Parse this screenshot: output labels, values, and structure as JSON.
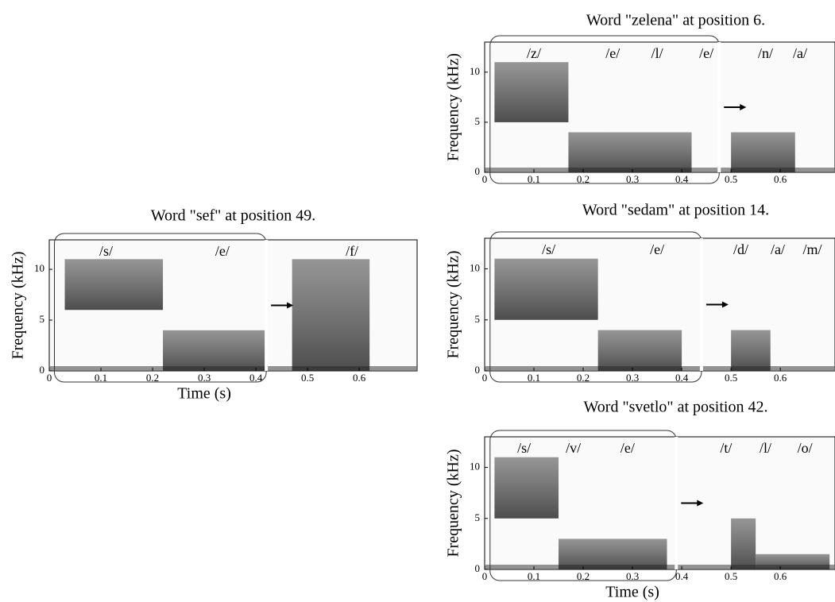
{
  "chart_data": [
    {
      "type": "spectrogram",
      "title": "Word \"sef\" at position 49.",
      "xlabel": "Time (s)",
      "ylabel": "Frequency (kHz)",
      "xlim": [
        0,
        0.712
      ],
      "ylim": [
        0,
        12.9
      ],
      "xticks": [
        0,
        0.1,
        0.2,
        0.3,
        0.4,
        0.5,
        0.6
      ],
      "yticks": [
        0,
        5,
        10
      ],
      "window": [
        0.01,
        0.42
      ],
      "annotations": [
        {
          "text": "/s/",
          "x": 0.11
        },
        {
          "text": "/e/",
          "x": 0.335
        },
        {
          "text": "/f/",
          "x": 0.586
        }
      ],
      "energy": [
        {
          "t": [
            0.03,
            0.22
          ],
          "f": [
            6,
            11
          ]
        },
        {
          "t": [
            0.22,
            0.42
          ],
          "f": [
            0,
            4
          ]
        },
        {
          "t": [
            0.47,
            0.62
          ],
          "f": [
            0,
            11
          ]
        }
      ]
    },
    {
      "type": "spectrogram",
      "title": "Word \"zelena\" at position 6.",
      "ylabel": "Frequency (kHz)",
      "xlim": [
        0,
        0.711
      ],
      "ylim": [
        0,
        13
      ],
      "xticks": [
        0,
        0.1,
        0.2,
        0.3,
        0.4,
        0.5,
        0.6
      ],
      "yticks": [
        0,
        5,
        10
      ],
      "window": [
        0.011,
        0.476
      ],
      "annotations": [
        {
          "text": "/z/",
          "x": 0.1
        },
        {
          "text": "/e/",
          "x": 0.26
        },
        {
          "text": "/l/",
          "x": 0.35
        },
        {
          "text": "/e/",
          "x": 0.45
        },
        {
          "text": "/n/",
          "x": 0.57
        },
        {
          "text": "/a/",
          "x": 0.64
        }
      ],
      "energy": [
        {
          "t": [
            0.02,
            0.17
          ],
          "f": [
            5,
            11
          ]
        },
        {
          "t": [
            0.17,
            0.42
          ],
          "f": [
            0,
            4
          ]
        },
        {
          "t": [
            0.5,
            0.63
          ],
          "f": [
            0,
            4
          ]
        }
      ]
    },
    {
      "type": "spectrogram",
      "title": "Word \"sedam\" at position 14.",
      "ylabel": "Frequency (kHz)",
      "xlim": [
        0,
        0.711
      ],
      "ylim": [
        0,
        13
      ],
      "xticks": [
        0,
        0.1,
        0.2,
        0.3,
        0.4,
        0.5,
        0.6
      ],
      "yticks": [
        0,
        5,
        10
      ],
      "window": [
        0.011,
        0.44
      ],
      "annotations": [
        {
          "text": "/s/",
          "x": 0.13
        },
        {
          "text": "/e/",
          "x": 0.35
        },
        {
          "text": "/d/",
          "x": 0.52
        },
        {
          "text": "/a/",
          "x": 0.595
        },
        {
          "text": "/m/",
          "x": 0.665
        }
      ],
      "energy": [
        {
          "t": [
            0.02,
            0.23
          ],
          "f": [
            5,
            11
          ]
        },
        {
          "t": [
            0.23,
            0.4
          ],
          "f": [
            0,
            4
          ]
        },
        {
          "t": [
            0.5,
            0.58
          ],
          "f": [
            0,
            4
          ]
        }
      ]
    },
    {
      "type": "spectrogram",
      "title": "Word \"svetlo\" at position 42.",
      "xlabel": "Time (s)",
      "ylabel": "Frequency (kHz)",
      "xlim": [
        0,
        0.711
      ],
      "ylim": [
        0,
        13
      ],
      "xticks": [
        0,
        0.1,
        0.2,
        0.3,
        0.4,
        0.5,
        0.6
      ],
      "yticks": [
        0,
        5,
        10
      ],
      "window": [
        0.011,
        0.389
      ],
      "annotations": [
        {
          "text": "/s/",
          "x": 0.08
        },
        {
          "text": "/v/",
          "x": 0.18
        },
        {
          "text": "/e/",
          "x": 0.29
        },
        {
          "text": "/t/",
          "x": 0.49
        },
        {
          "text": "/l/",
          "x": 0.57
        },
        {
          "text": "/o/",
          "x": 0.65
        }
      ],
      "energy": [
        {
          "t": [
            0.02,
            0.15
          ],
          "f": [
            5,
            11
          ]
        },
        {
          "t": [
            0.15,
            0.37
          ],
          "f": [
            0,
            3
          ]
        },
        {
          "t": [
            0.5,
            0.55
          ],
          "f": [
            0,
            5
          ]
        },
        {
          "t": [
            0.55,
            0.7
          ],
          "f": [
            0,
            1.5
          ]
        }
      ]
    }
  ]
}
